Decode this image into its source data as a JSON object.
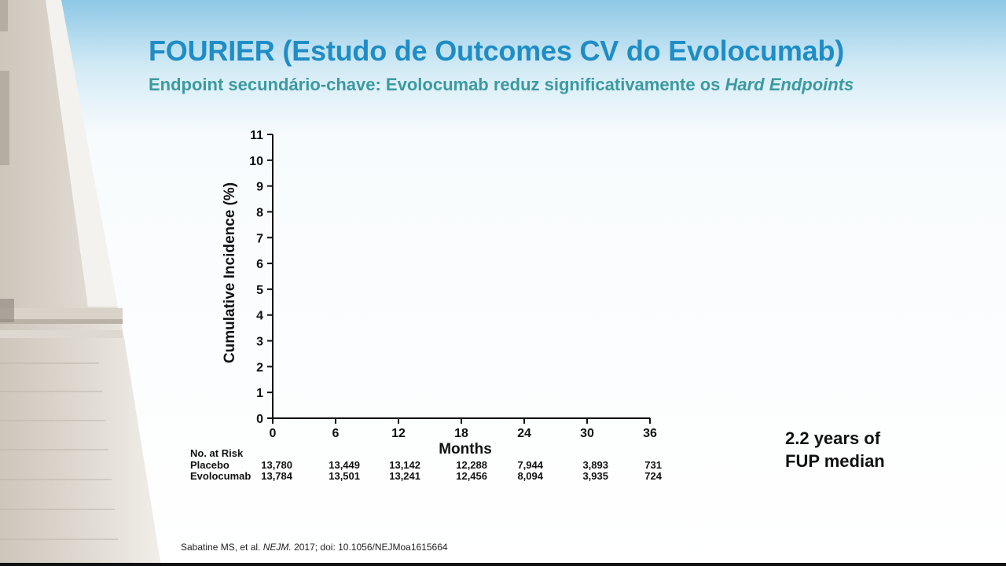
{
  "slide": {
    "title": "FOURIER (Estudo de Outcomes CV do Evolocumab)",
    "subtitle_prefix": "Endpoint secundário-chave: Evolocumab reduz significativamente os ",
    "subtitle_emphasis": "Hard Endpoints",
    "fup_line1": "2.2 years of",
    "fup_line2": "FUP median",
    "reference_authors": "Sabatine MS, et al. ",
    "reference_journal": "NEJM.",
    "reference_rest": " 2017; doi: 10.1056/NEJMoa1615664",
    "colors": {
      "title": "#1f8dc5",
      "subtitle": "#3c9aa0"
    }
  },
  "chart_data": {
    "type": "line",
    "title": "",
    "xlabel": "Months",
    "ylabel": "Cumulative Incidence (%)",
    "xlim": [
      0,
      36
    ],
    "ylim": [
      0,
      11
    ],
    "x_ticks": [
      0,
      6,
      12,
      18,
      24,
      30,
      36
    ],
    "y_ticks": [
      0,
      1,
      2,
      3,
      4,
      5,
      6,
      7,
      8,
      9,
      10,
      11
    ],
    "grid": false,
    "series": [],
    "at_risk": {
      "header": "No. at Risk",
      "rows": [
        {
          "label": "Placebo",
          "values": [
            "13,780",
            "13,449",
            "13,142",
            "12,288",
            "7,944",
            "3,893",
            "731"
          ]
        },
        {
          "label": "Evolocumab",
          "values": [
            "13,784",
            "13,501",
            "13,241",
            "12,456",
            "8,094",
            "3,935",
            "724"
          ]
        }
      ]
    }
  }
}
